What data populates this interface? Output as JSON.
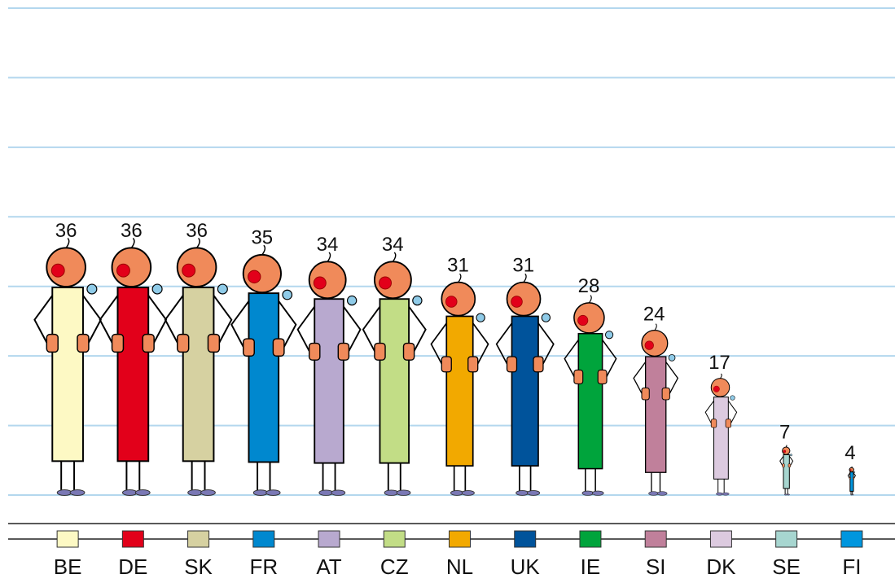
{
  "chart_data": {
    "type": "pictogram",
    "categories": [
      "BE",
      "DE",
      "SK",
      "FR",
      "AT",
      "CZ",
      "NL",
      "UK",
      "IE",
      "SI",
      "DK",
      "SE",
      "FI"
    ],
    "values": [
      36,
      36,
      36,
      35,
      34,
      34,
      31,
      31,
      28,
      24,
      17,
      7,
      4
    ],
    "colors": [
      "#fdf9c4",
      "#e2001a",
      "#d6d1a1",
      "#0088cf",
      "#b8a9cf",
      "#c2dd86",
      "#f2a900",
      "#00539b",
      "#00a43c",
      "#c0809b",
      "#dccadf",
      "#a7d6d0",
      "#0096de"
    ],
    "ylim": [
      0,
      70
    ],
    "yticks": [
      0,
      10,
      20,
      30,
      40,
      50,
      60,
      70
    ],
    "grid": true
  }
}
